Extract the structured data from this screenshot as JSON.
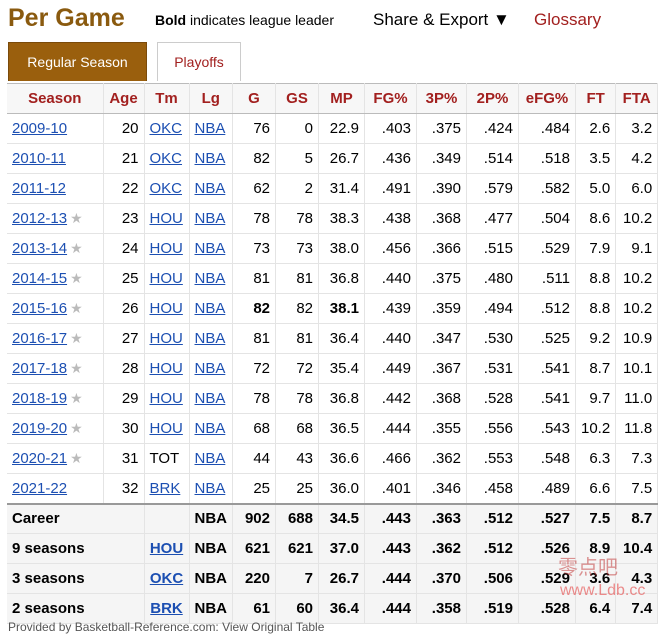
{
  "header": {
    "title": "Per Game",
    "hint_bold": "Bold",
    "hint_rest": " indicates league leader",
    "share_label": "Share & Export ▼",
    "glossary_label": "Glossary"
  },
  "tabs": [
    {
      "label": "Regular Season"
    },
    {
      "label": "Playoffs"
    }
  ],
  "columns": [
    "Season",
    "Age",
    "Tm",
    "Lg",
    "G",
    "GS",
    "MP",
    "FG%",
    "3P%",
    "2P%",
    "eFG%",
    "FT",
    "FTA"
  ],
  "rows": [
    {
      "season": "2009-10",
      "star": false,
      "age": "20",
      "tm": "OKC",
      "lg": "NBA",
      "g": "76",
      "gs": "0",
      "mp": "22.9",
      "fg": ".403",
      "tp": ".375",
      "twop": ".424",
      "efg": ".484",
      "ft": "2.6",
      "fta": "3.2"
    },
    {
      "season": "2010-11",
      "star": false,
      "age": "21",
      "tm": "OKC",
      "lg": "NBA",
      "g": "82",
      "gs": "5",
      "mp": "26.7",
      "fg": ".436",
      "tp": ".349",
      "twop": ".514",
      "efg": ".518",
      "ft": "3.5",
      "fta": "4.2"
    },
    {
      "season": "2011-12",
      "star": false,
      "age": "22",
      "tm": "OKC",
      "lg": "NBA",
      "g": "62",
      "gs": "2",
      "mp": "31.4",
      "fg": ".491",
      "tp": ".390",
      "twop": ".579",
      "efg": ".582",
      "ft": "5.0",
      "fta": "6.0"
    },
    {
      "season": "2012-13",
      "star": true,
      "age": "23",
      "tm": "HOU",
      "lg": "NBA",
      "g": "78",
      "gs": "78",
      "mp": "38.3",
      "fg": ".438",
      "tp": ".368",
      "twop": ".477",
      "efg": ".504",
      "ft": "8.6",
      "fta": "10.2"
    },
    {
      "season": "2013-14",
      "star": true,
      "age": "24",
      "tm": "HOU",
      "lg": "NBA",
      "g": "73",
      "gs": "73",
      "mp": "38.0",
      "fg": ".456",
      "tp": ".366",
      "twop": ".515",
      "efg": ".529",
      "ft": "7.9",
      "fta": "9.1"
    },
    {
      "season": "2014-15",
      "star": true,
      "age": "25",
      "tm": "HOU",
      "lg": "NBA",
      "g": "81",
      "gs": "81",
      "mp": "36.8",
      "fg": ".440",
      "tp": ".375",
      "twop": ".480",
      "efg": ".511",
      "ft": "8.8",
      "fta": "10.2"
    },
    {
      "season": "2015-16",
      "star": true,
      "age": "26",
      "tm": "HOU",
      "lg": "NBA",
      "g": "82",
      "gs": "82",
      "mp": "38.1",
      "fg": ".439",
      "tp": ".359",
      "twop": ".494",
      "efg": ".512",
      "ft": "8.8",
      "fta": "10.2",
      "bold_g": true,
      "bold_mp": true
    },
    {
      "season": "2016-17",
      "star": true,
      "age": "27",
      "tm": "HOU",
      "lg": "NBA",
      "g": "81",
      "gs": "81",
      "mp": "36.4",
      "fg": ".440",
      "tp": ".347",
      "twop": ".530",
      "efg": ".525",
      "ft": "9.2",
      "fta": "10.9"
    },
    {
      "season": "2017-18",
      "star": true,
      "age": "28",
      "tm": "HOU",
      "lg": "NBA",
      "g": "72",
      "gs": "72",
      "mp": "35.4",
      "fg": ".449",
      "tp": ".367",
      "twop": ".531",
      "efg": ".541",
      "ft": "8.7",
      "fta": "10.1"
    },
    {
      "season": "2018-19",
      "star": true,
      "age": "29",
      "tm": "HOU",
      "lg": "NBA",
      "g": "78",
      "gs": "78",
      "mp": "36.8",
      "fg": ".442",
      "tp": ".368",
      "twop": ".528",
      "efg": ".541",
      "ft": "9.7",
      "fta": "11.0"
    },
    {
      "season": "2019-20",
      "star": true,
      "age": "30",
      "tm": "HOU",
      "lg": "NBA",
      "g": "68",
      "gs": "68",
      "mp": "36.5",
      "fg": ".444",
      "tp": ".355",
      "twop": ".556",
      "efg": ".543",
      "ft": "10.2",
      "fta": "11.8"
    },
    {
      "season": "2020-21",
      "star": true,
      "age": "31",
      "tm": "TOT",
      "tm_link": false,
      "lg": "NBA",
      "g": "44",
      "gs": "43",
      "mp": "36.6",
      "fg": ".466",
      "tp": ".362",
      "twop": ".553",
      "efg": ".548",
      "ft": "6.3",
      "fta": "7.3"
    },
    {
      "season": "2021-22",
      "star": false,
      "age": "32",
      "tm": "BRK",
      "lg": "NBA",
      "g": "25",
      "gs": "25",
      "mp": "36.0",
      "fg": ".401",
      "tp": ".346",
      "twop": ".458",
      "efg": ".489",
      "ft": "6.6",
      "fta": "7.5"
    }
  ],
  "summary": [
    {
      "label": "Career",
      "tm": "",
      "lg": "NBA",
      "g": "902",
      "gs": "688",
      "mp": "34.5",
      "fg": ".443",
      "tp": ".363",
      "twop": ".512",
      "efg": ".527",
      "ft": "7.5",
      "fta": "8.7"
    },
    {
      "label": "9 seasons",
      "tm": "HOU",
      "lg": "NBA",
      "g": "621",
      "gs": "621",
      "mp": "37.0",
      "fg": ".443",
      "tp": ".362",
      "twop": ".512",
      "efg": ".526",
      "ft": "8.9",
      "fta": "10.4"
    },
    {
      "label": "3 seasons",
      "tm": "OKC",
      "lg": "NBA",
      "g": "220",
      "gs": "7",
      "mp": "26.7",
      "fg": ".444",
      "tp": ".370",
      "twop": ".506",
      "efg": ".529",
      "ft": "3.6",
      "fta": "4.3"
    },
    {
      "label": "2 seasons",
      "tm": "BRK",
      "lg": "NBA",
      "g": "61",
      "gs": "60",
      "mp": "36.4",
      "fg": ".444",
      "tp": ".358",
      "twop": ".519",
      "efg": ".528",
      "ft": "6.4",
      "fta": "7.4"
    }
  ],
  "footer": "Provided by Basketball-Reference.com: View Original Table",
  "watermark_cn": "零点吧",
  "watermark": "www.Ldb.cc",
  "colors": {
    "accent": "#a2201f",
    "tab_active": "#9a5f0d",
    "title": "#8a5a0f",
    "link": "#1c4fb2"
  }
}
